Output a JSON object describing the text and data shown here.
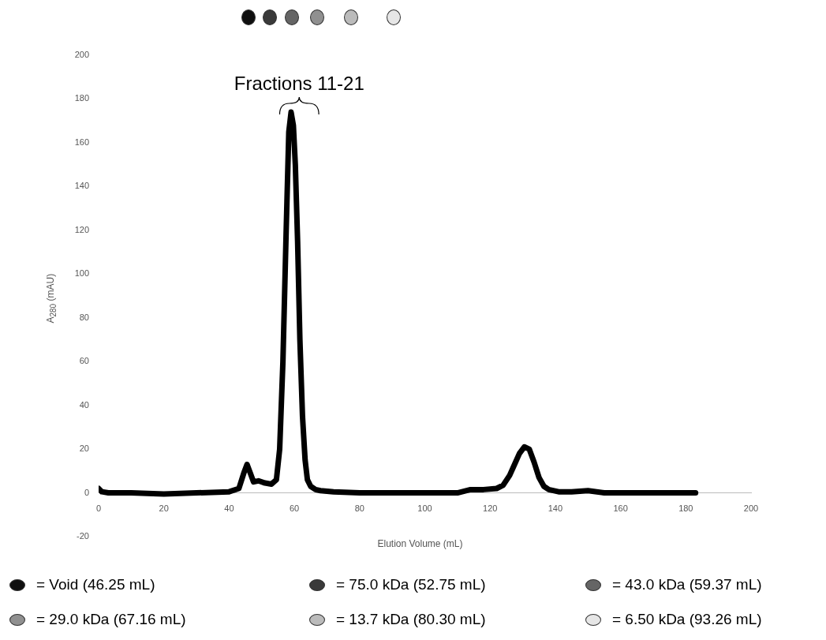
{
  "chart_data": {
    "type": "line",
    "xlabel": "Elution Volume (mL)",
    "ylabel": "A$_{280}$ (mAU)",
    "xlim": [
      0,
      200
    ],
    "xticks": [
      0,
      20,
      40,
      60,
      80,
      100,
      120,
      140,
      160,
      180,
      200
    ],
    "ylim": [
      -20,
      200
    ],
    "yticks": [
      -20,
      0,
      20,
      40,
      60,
      80,
      100,
      120,
      140,
      160,
      180,
      200
    ],
    "grid": false,
    "legend": false,
    "marker": "none",
    "line_style": "solid",
    "series": [
      {
        "color": "#000000",
        "x": [
          0,
          1,
          3,
          10,
          20,
          30,
          40,
          43,
          44.5,
          45.5,
          46.5,
          47.5,
          49,
          51,
          53,
          54.5,
          55.5,
          56.5,
          57.5,
          58.3,
          59,
          59.7,
          60.3,
          61,
          61.7,
          62.5,
          63.3,
          64,
          65,
          66.5,
          68,
          72,
          80,
          90,
          100,
          110,
          114,
          118,
          122,
          124,
          126,
          127.5,
          129,
          130.5,
          132,
          133.5,
          135,
          136.5,
          138,
          141,
          145,
          150,
          155,
          160,
          170,
          183
        ],
        "values": [
          2,
          0.5,
          0,
          0,
          -0.5,
          0,
          0.5,
          2,
          9,
          13,
          9,
          5,
          5.5,
          4.5,
          4,
          6,
          20,
          60,
          120,
          165,
          174,
          168,
          150,
          115,
          70,
          35,
          15,
          6,
          3,
          1.5,
          1,
          0.5,
          0,
          0,
          0,
          0,
          1.5,
          1.5,
          2,
          3.5,
          8,
          13,
          18,
          21,
          20,
          14,
          7,
          3,
          1.5,
          0.5,
          0.5,
          1,
          0,
          0,
          0,
          0
        ]
      }
    ],
    "annotations": [
      "Fractions 11-21",
      "= Void (46.25 mL)",
      "= 75.0 kDa (52.75 mL)",
      "= 43.0 kDa (59.37 mL)",
      "= 29.0 kDa (67.16 mL)",
      "= 13.7 kDa (80.30 mL)",
      "= 6.50 kDa (93.26 mL)"
    ]
  }
}
